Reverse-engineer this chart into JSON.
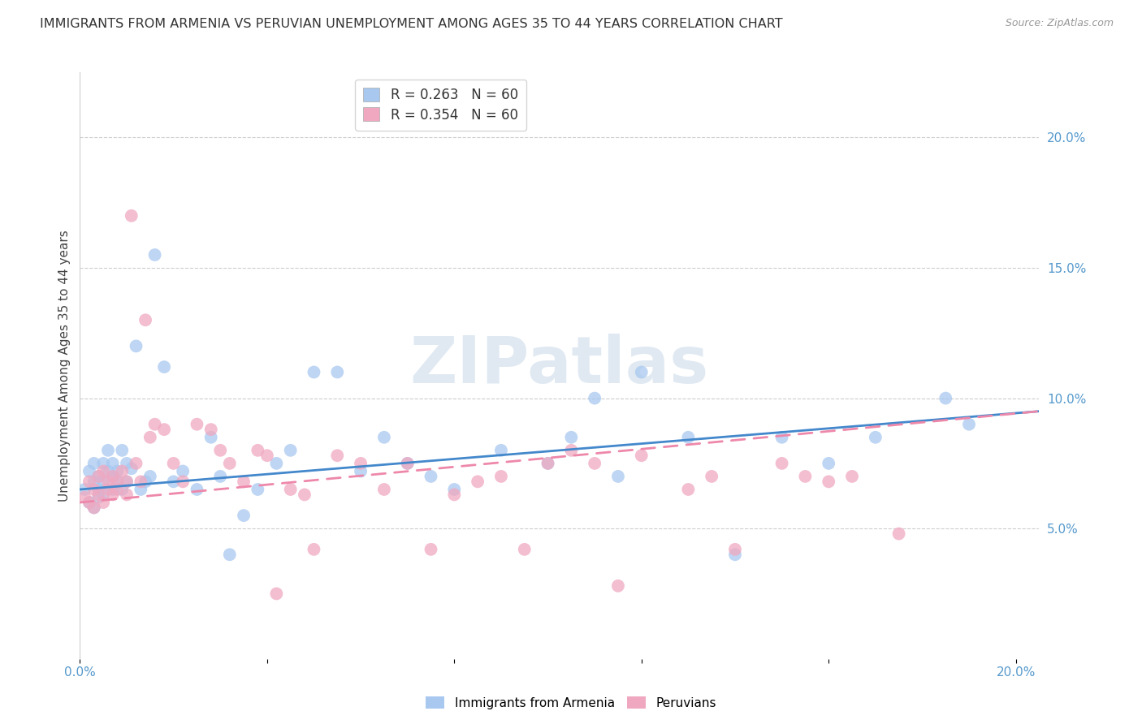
{
  "title": "IMMIGRANTS FROM ARMENIA VS PERUVIAN UNEMPLOYMENT AMONG AGES 35 TO 44 YEARS CORRELATION CHART",
  "source": "Source: ZipAtlas.com",
  "ylabel": "Unemployment Among Ages 35 to 44 years",
  "xlim": [
    0.0,
    0.205
  ],
  "ylim": [
    0.0,
    0.225
  ],
  "color_armenia": "#a8c8f0",
  "color_peruvian": "#f0a8c0",
  "line_color_armenia": "#4488cc",
  "line_color_peruvian": "#ee88aa",
  "watermark": "ZIPatlas",
  "scatter_armenia_x": [
    0.001,
    0.002,
    0.002,
    0.003,
    0.003,
    0.003,
    0.004,
    0.004,
    0.004,
    0.005,
    0.005,
    0.005,
    0.006,
    0.006,
    0.007,
    0.007,
    0.007,
    0.008,
    0.008,
    0.009,
    0.009,
    0.01,
    0.01,
    0.011,
    0.012,
    0.013,
    0.014,
    0.015,
    0.016,
    0.018,
    0.02,
    0.022,
    0.025,
    0.028,
    0.03,
    0.032,
    0.035,
    0.038,
    0.042,
    0.045,
    0.05,
    0.055,
    0.06,
    0.065,
    0.07,
    0.075,
    0.08,
    0.09,
    0.1,
    0.105,
    0.11,
    0.115,
    0.12,
    0.13,
    0.14,
    0.15,
    0.16,
    0.17,
    0.185,
    0.19
  ],
  "scatter_armenia_y": [
    0.065,
    0.072,
    0.06,
    0.068,
    0.075,
    0.058,
    0.07,
    0.065,
    0.062,
    0.075,
    0.068,
    0.063,
    0.072,
    0.08,
    0.065,
    0.07,
    0.075,
    0.068,
    0.072,
    0.08,
    0.065,
    0.075,
    0.068,
    0.073,
    0.12,
    0.065,
    0.068,
    0.07,
    0.155,
    0.112,
    0.068,
    0.072,
    0.065,
    0.085,
    0.07,
    0.04,
    0.055,
    0.065,
    0.075,
    0.08,
    0.11,
    0.11,
    0.072,
    0.085,
    0.075,
    0.07,
    0.065,
    0.08,
    0.075,
    0.085,
    0.1,
    0.07,
    0.11,
    0.085,
    0.04,
    0.085,
    0.075,
    0.085,
    0.1,
    0.09
  ],
  "scatter_peruvian_x": [
    0.001,
    0.002,
    0.002,
    0.003,
    0.003,
    0.004,
    0.004,
    0.005,
    0.005,
    0.006,
    0.006,
    0.007,
    0.007,
    0.008,
    0.008,
    0.009,
    0.01,
    0.01,
    0.011,
    0.012,
    0.013,
    0.014,
    0.015,
    0.016,
    0.018,
    0.02,
    0.022,
    0.025,
    0.028,
    0.03,
    0.032,
    0.035,
    0.038,
    0.04,
    0.042,
    0.045,
    0.048,
    0.05,
    0.055,
    0.06,
    0.065,
    0.07,
    0.075,
    0.08,
    0.085,
    0.09,
    0.095,
    0.1,
    0.105,
    0.11,
    0.115,
    0.12,
    0.13,
    0.135,
    0.14,
    0.15,
    0.155,
    0.16,
    0.165,
    0.175
  ],
  "scatter_peruvian_y": [
    0.062,
    0.068,
    0.06,
    0.065,
    0.058,
    0.07,
    0.063,
    0.072,
    0.06,
    0.068,
    0.065,
    0.063,
    0.07,
    0.068,
    0.065,
    0.072,
    0.063,
    0.068,
    0.17,
    0.075,
    0.068,
    0.13,
    0.085,
    0.09,
    0.088,
    0.075,
    0.068,
    0.09,
    0.088,
    0.08,
    0.075,
    0.068,
    0.08,
    0.078,
    0.025,
    0.065,
    0.063,
    0.042,
    0.078,
    0.075,
    0.065,
    0.075,
    0.042,
    0.063,
    0.068,
    0.07,
    0.042,
    0.075,
    0.08,
    0.075,
    0.028,
    0.078,
    0.065,
    0.07,
    0.042,
    0.075,
    0.07,
    0.068,
    0.07,
    0.048
  ]
}
